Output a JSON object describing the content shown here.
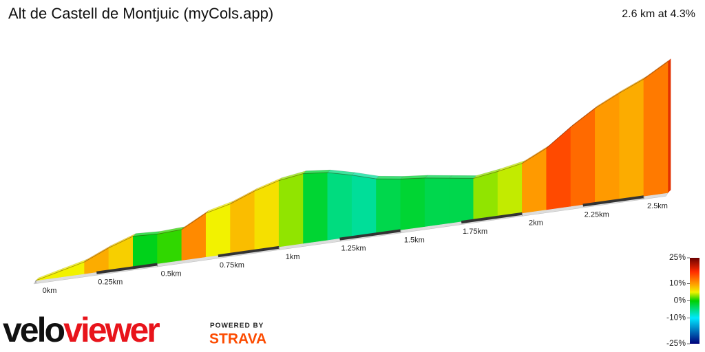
{
  "chart_data": {
    "type": "profile",
    "title": "Alt de Castell de Montjuic (myCols.app)",
    "subtitle": "2.6 km at 4.3%",
    "x": [
      0,
      0.1,
      0.2,
      0.3,
      0.4,
      0.5,
      0.6,
      0.7,
      0.8,
      0.9,
      1.0,
      1.1,
      1.2,
      1.3,
      1.4,
      1.5,
      1.6,
      1.7,
      1.8,
      1.9,
      2.0,
      2.1,
      2.2,
      2.3,
      2.4,
      2.5,
      2.6
    ],
    "values": [
      0,
      5,
      10,
      19,
      26,
      25,
      26,
      37,
      42,
      50,
      56,
      59,
      57,
      52,
      46,
      43,
      41,
      38,
      35,
      38,
      42,
      52,
      67,
      80,
      90,
      99,
      111
    ],
    "xlim": [
      0,
      2.6
    ],
    "xticks": [
      {
        "value": 0,
        "label": "0km"
      },
      {
        "value": 0.25,
        "label": "0.25km"
      },
      {
        "value": 0.5,
        "label": "0.5km"
      },
      {
        "value": 0.75,
        "label": "0.75km"
      },
      {
        "value": 1,
        "label": "1km"
      },
      {
        "value": 1.25,
        "label": "1.25km"
      },
      {
        "value": 1.5,
        "label": "1.5km"
      },
      {
        "value": 1.75,
        "label": "1.75km"
      },
      {
        "value": 2,
        "label": "2km"
      },
      {
        "value": 2.25,
        "label": "2.25km"
      },
      {
        "value": 2.5,
        "label": "2.5km"
      }
    ],
    "color_scale": {
      "range": [
        -25,
        25
      ],
      "ticks": [
        {
          "value": 25,
          "label": "25%"
        },
        {
          "value": 10,
          "label": "10%"
        },
        {
          "value": 0,
          "label": "0%"
        },
        {
          "value": -10,
          "label": "-10%"
        },
        {
          "value": -25,
          "label": "-25%"
        }
      ],
      "stops": [
        [
          -25,
          "#00007a"
        ],
        [
          -10,
          "#00e8ff"
        ],
        [
          0,
          "#00d000"
        ],
        [
          5,
          "#f2f200"
        ],
        [
          10,
          "#ff9a00"
        ],
        [
          17,
          "#ff2a00"
        ],
        [
          25,
          "#6a0000"
        ]
      ]
    }
  },
  "branding": {
    "logo": "veloviewer",
    "powered": "POWERED BY",
    "strava": "STRAVA"
  }
}
